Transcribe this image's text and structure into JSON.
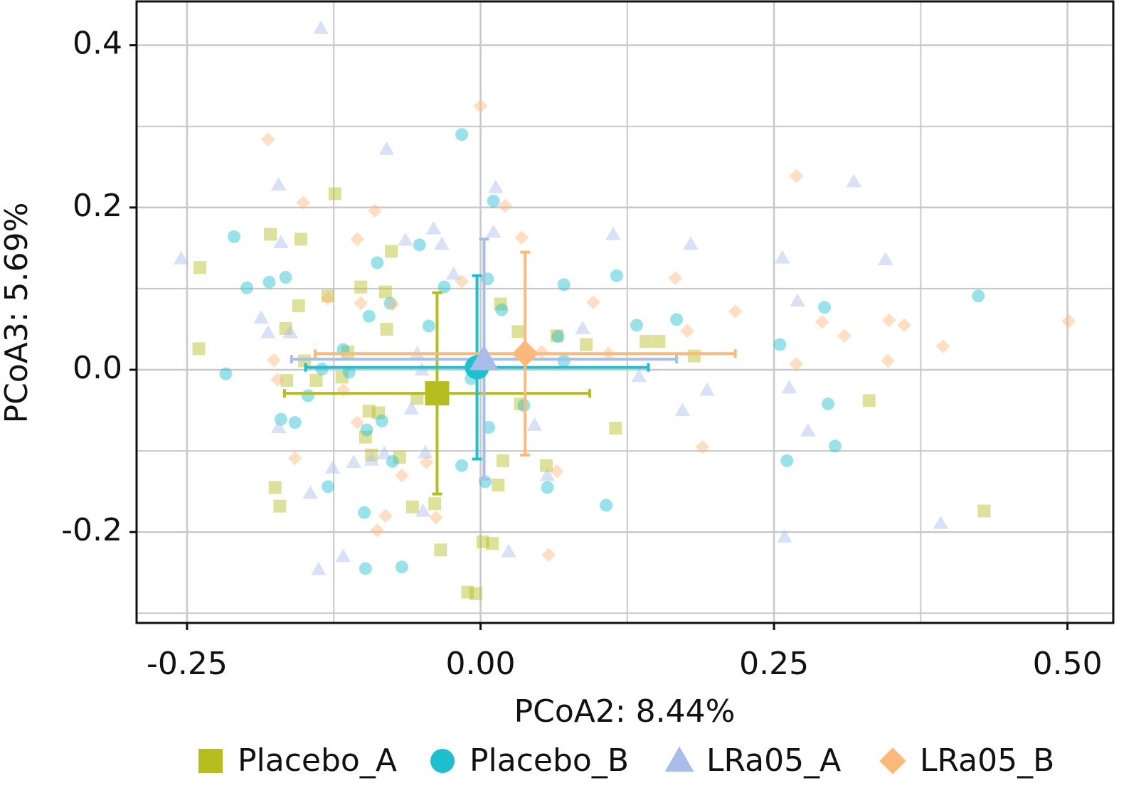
{
  "chart_data": {
    "type": "scatter",
    "xlabel": "PCoA2: 8.44%",
    "ylabel": "PCoA3: 5.69%",
    "xlim": [
      -0.293,
      0.539
    ],
    "ylim": [
      -0.312,
      0.454
    ],
    "xticks": [
      -0.25,
      {
        "value": 0,
        "label": "0.00"
      },
      0.25,
      {
        "value": 0.5,
        "label": "0.50"
      }
    ],
    "yticks": [
      -0.2,
      {
        "value": 0,
        "label": "0.0"
      },
      0.2,
      0.4
    ],
    "minor_xticks": [
      -0.125,
      0.125,
      0.375
    ],
    "minor_yticks": [
      -0.3,
      -0.1,
      0.1,
      0.3
    ],
    "grid": true,
    "legend": "bottom",
    "series": [
      {
        "name": "Placebo_A",
        "color": "#b5bd1f",
        "marker": "square",
        "x": [
          -0.124,
          -0.179,
          -0.153,
          -0.239,
          -0.076,
          -0.155,
          -0.13,
          -0.102,
          -0.081,
          -0.166,
          -0.08,
          -0.24,
          -0.113,
          -0.15,
          -0.165,
          -0.14,
          -0.118,
          -0.095,
          -0.087,
          -0.098,
          -0.093,
          -0.069,
          -0.175,
          -0.171,
          -0.058,
          -0.039,
          -0.034,
          -0.011,
          -0.004,
          0.002,
          0.01,
          0.015,
          0.019,
          0.056,
          0.017,
          0.032,
          0.065,
          0.09,
          0.115,
          0.141,
          0.152,
          0.182,
          0.331,
          0.429,
          -0.054,
          0.034
        ],
        "y": [
          0.217,
          0.167,
          0.161,
          0.126,
          0.146,
          0.079,
          0.091,
          0.102,
          0.096,
          0.051,
          0.05,
          0.026,
          0.022,
          0.011,
          -0.013,
          -0.013,
          -0.009,
          -0.051,
          -0.053,
          -0.083,
          -0.105,
          -0.108,
          -0.145,
          -0.168,
          -0.169,
          -0.165,
          -0.222,
          -0.274,
          -0.276,
          -0.212,
          -0.214,
          -0.142,
          -0.112,
          -0.118,
          0.081,
          0.047,
          0.042,
          0.031,
          -0.072,
          0.035,
          0.035,
          0.017,
          -0.038,
          -0.174,
          -0.035,
          -0.042
        ],
        "centroid": {
          "x": -0.037,
          "y": -0.029,
          "xerr": 0.13,
          "yerr": 0.124
        }
      },
      {
        "name": "Placebo_B",
        "color": "#1ebfcf",
        "marker": "circle",
        "x": [
          -0.21,
          -0.199,
          -0.18,
          -0.166,
          -0.217,
          -0.17,
          -0.158,
          -0.147,
          -0.135,
          -0.117,
          -0.112,
          -0.13,
          -0.099,
          -0.098,
          -0.067,
          -0.097,
          -0.084,
          -0.075,
          -0.095,
          -0.088,
          -0.077,
          -0.052,
          -0.044,
          -0.031,
          -0.016,
          0.011,
          0.006,
          0.018,
          -0.008,
          -0.016,
          0.004,
          0.007,
          0.037,
          0.057,
          0.071,
          0.066,
          0.071,
          0.116,
          0.133,
          0.167,
          0.107,
          0.255,
          0.261,
          0.293,
          0.296,
          0.302,
          0.424
        ],
        "y": [
          0.164,
          0.101,
          0.108,
          0.114,
          -0.005,
          -0.061,
          -0.065,
          -0.032,
          0.001,
          0.025,
          -0.003,
          -0.144,
          -0.176,
          -0.245,
          -0.243,
          -0.074,
          -0.063,
          -0.113,
          0.066,
          0.132,
          0.082,
          0.154,
          0.054,
          0.102,
          0.29,
          0.208,
          0.112,
          0.074,
          -0.011,
          -0.118,
          -0.138,
          -0.071,
          -0.044,
          -0.145,
          0.105,
          0.041,
          0.011,
          0.116,
          0.055,
          0.062,
          -0.167,
          0.031,
          -0.112,
          0.077,
          -0.042,
          -0.094,
          0.091
        ],
        "centroid": {
          "x": -0.003,
          "y": 0.003,
          "xerr": 0.146,
          "yerr": 0.113
        }
      },
      {
        "name": "LRa05_A",
        "color": "#a8bde8",
        "marker": "triangle",
        "x": [
          -0.136,
          -0.08,
          -0.172,
          -0.255,
          -0.17,
          -0.064,
          -0.04,
          -0.033,
          -0.023,
          0.013,
          0.011,
          0.113,
          0.179,
          0.257,
          0.318,
          0.345,
          0.27,
          0.087,
          -0.187,
          -0.181,
          -0.162,
          -0.054,
          -0.05,
          0.135,
          0.193,
          0.172,
          0.263,
          0.279,
          -0.172,
          -0.059,
          -0.082,
          -0.047,
          -0.093,
          -0.108,
          -0.126,
          -0.145,
          -0.049,
          0.046,
          0.057,
          -0.117,
          -0.138,
          0.024,
          0.392,
          0.259
        ],
        "y": [
          0.421,
          0.272,
          0.228,
          0.137,
          0.157,
          0.16,
          0.174,
          0.155,
          0.118,
          0.225,
          0.17,
          0.167,
          0.155,
          0.138,
          0.232,
          0.136,
          0.085,
          0.051,
          0.064,
          0.046,
          0.046,
          0.02,
          0,
          -0.008,
          -0.025,
          -0.05,
          -0.022,
          -0.075,
          -0.071,
          -0.048,
          -0.103,
          -0.102,
          -0.111,
          -0.114,
          -0.121,
          -0.152,
          -0.174,
          -0.068,
          -0.13,
          -0.23,
          -0.246,
          -0.224,
          -0.189,
          -0.206
        ],
        "centroid": {
          "x": 0.003,
          "y": 0.013,
          "xerr": 0.164,
          "yerr": 0.148
        }
      },
      {
        "name": "LRa05_B",
        "color": "#fdb97a",
        "marker": "diamond",
        "x": [
          0,
          -0.181,
          -0.151,
          -0.09,
          -0.105,
          0.021,
          0.035,
          -0.016,
          -0.13,
          -0.102,
          -0.075,
          0.096,
          0.166,
          0.217,
          0.176,
          0.269,
          0.291,
          0.31,
          0.348,
          0.361,
          0.394,
          0.501,
          0.347,
          0.269,
          -0.176,
          -0.173,
          -0.117,
          -0.105,
          -0.158,
          -0.046,
          -0.067,
          0.065,
          0.189,
          -0.081,
          -0.088,
          -0.038,
          0.058,
          0.052,
          0.109
        ],
        "y": [
          0.325,
          0.284,
          0.206,
          0.196,
          0.161,
          0.202,
          0.163,
          0.109,
          0.088,
          0.082,
          0.081,
          0.083,
          0.113,
          0.072,
          0.048,
          0.239,
          0.059,
          0.042,
          0.061,
          0.055,
          0.029,
          0.06,
          0.011,
          0.007,
          0.012,
          -0.012,
          -0.025,
          -0.065,
          -0.109,
          -0.114,
          -0.13,
          -0.125,
          -0.095,
          -0.18,
          -0.198,
          -0.182,
          -0.228,
          0.022,
          0.02
        ],
        "centroid": {
          "x": 0.038,
          "y": 0.02,
          "xerr": 0.179,
          "yerr": 0.125
        }
      }
    ]
  }
}
